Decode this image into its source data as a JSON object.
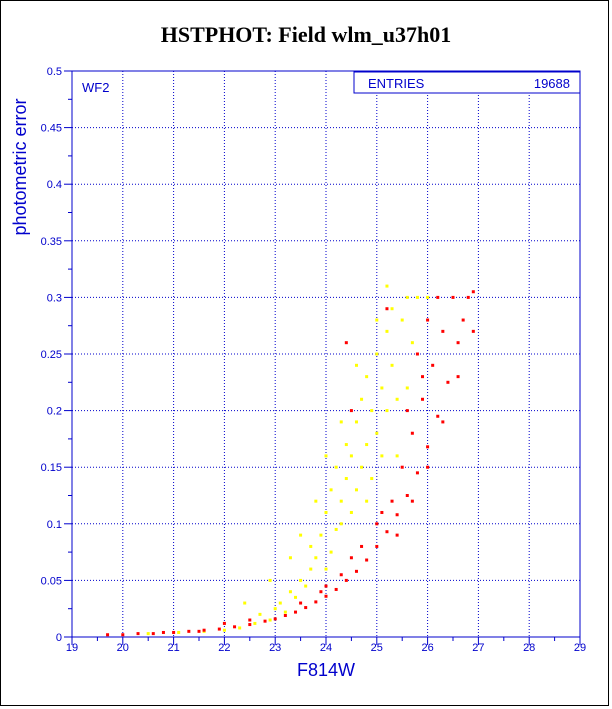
{
  "chart_data": {
    "type": "scatter",
    "title": "HSTPHOT: Field wlm_u37h01",
    "xlabel": "F814W",
    "ylabel": "photometric error",
    "panel_label": "WF2",
    "stats": {
      "label": "ENTRIES",
      "value": "19688"
    },
    "xlim": [
      19,
      29
    ],
    "ylim": [
      0,
      0.5
    ],
    "x_ticks": [
      "19",
      "20",
      "21",
      "22",
      "23",
      "24",
      "25",
      "26",
      "27",
      "28",
      "29"
    ],
    "y_ticks": [
      "0",
      "0.05",
      "0.1",
      "0.15",
      "0.2",
      "0.25",
      "0.3",
      "0.35",
      "0.4",
      "0.45",
      "0.5"
    ],
    "grid": true,
    "series": [
      {
        "color": "#ffff00",
        "values": [
          [
            20.5,
            0.003
          ],
          [
            21.1,
            0.004
          ],
          [
            21.6,
            0.005
          ],
          [
            22.0,
            0.006
          ],
          [
            22.3,
            0.008
          ],
          [
            22.6,
            0.012
          ],
          [
            22.7,
            0.02
          ],
          [
            22.9,
            0.015
          ],
          [
            23.0,
            0.025
          ],
          [
            23.1,
            0.03
          ],
          [
            23.2,
            0.022
          ],
          [
            23.3,
            0.04
          ],
          [
            23.4,
            0.035
          ],
          [
            23.5,
            0.05
          ],
          [
            23.6,
            0.045
          ],
          [
            23.7,
            0.06
          ],
          [
            23.7,
            0.08
          ],
          [
            23.8,
            0.07
          ],
          [
            23.9,
            0.09
          ],
          [
            24.0,
            0.06
          ],
          [
            24.0,
            0.11
          ],
          [
            24.1,
            0.075
          ],
          [
            24.1,
            0.13
          ],
          [
            24.2,
            0.095
          ],
          [
            24.2,
            0.15
          ],
          [
            24.3,
            0.1
          ],
          [
            24.3,
            0.12
          ],
          [
            24.4,
            0.14
          ],
          [
            24.4,
            0.17
          ],
          [
            24.5,
            0.11
          ],
          [
            24.5,
            0.16
          ],
          [
            24.6,
            0.13
          ],
          [
            24.6,
            0.19
          ],
          [
            24.7,
            0.15
          ],
          [
            24.7,
            0.21
          ],
          [
            24.8,
            0.17
          ],
          [
            24.8,
            0.23
          ],
          [
            24.9,
            0.14
          ],
          [
            24.9,
            0.2
          ],
          [
            25.0,
            0.18
          ],
          [
            25.0,
            0.25
          ],
          [
            25.1,
            0.16
          ],
          [
            25.1,
            0.22
          ],
          [
            25.2,
            0.2
          ],
          [
            25.2,
            0.27
          ],
          [
            25.3,
            0.24
          ],
          [
            25.3,
            0.29
          ],
          [
            25.4,
            0.21
          ],
          [
            25.5,
            0.28
          ],
          [
            25.6,
            0.3
          ],
          [
            25.8,
            0.3
          ],
          [
            26.0,
            0.3
          ],
          [
            23.5,
            0.09
          ],
          [
            23.8,
            0.12
          ],
          [
            24.0,
            0.16
          ],
          [
            24.3,
            0.19
          ],
          [
            24.6,
            0.24
          ],
          [
            25.0,
            0.28
          ],
          [
            25.2,
            0.31
          ],
          [
            22.4,
            0.03
          ],
          [
            22.9,
            0.05
          ],
          [
            23.3,
            0.07
          ],
          [
            24.8,
            0.12
          ],
          [
            25.4,
            0.16
          ],
          [
            25.6,
            0.22
          ],
          [
            25.7,
            0.26
          ]
        ]
      },
      {
        "color": "#ff0000",
        "values": [
          [
            19.7,
            0.002
          ],
          [
            20.0,
            0.002
          ],
          [
            20.3,
            0.003
          ],
          [
            20.6,
            0.003
          ],
          [
            21.0,
            0.004
          ],
          [
            21.3,
            0.005
          ],
          [
            21.6,
            0.006
          ],
          [
            21.9,
            0.007
          ],
          [
            22.2,
            0.009
          ],
          [
            22.5,
            0.011
          ],
          [
            22.8,
            0.014
          ],
          [
            23.0,
            0.016
          ],
          [
            23.2,
            0.019
          ],
          [
            23.4,
            0.022
          ],
          [
            23.6,
            0.026
          ],
          [
            23.8,
            0.031
          ],
          [
            24.0,
            0.036
          ],
          [
            24.2,
            0.042
          ],
          [
            24.4,
            0.05
          ],
          [
            24.6,
            0.058
          ],
          [
            24.8,
            0.068
          ],
          [
            25.0,
            0.08
          ],
          [
            25.2,
            0.093
          ],
          [
            25.4,
            0.108
          ],
          [
            25.6,
            0.125
          ],
          [
            25.8,
            0.145
          ],
          [
            26.0,
            0.168
          ],
          [
            26.2,
            0.195
          ],
          [
            26.4,
            0.225
          ],
          [
            26.6,
            0.26
          ],
          [
            26.8,
            0.3
          ],
          [
            26.9,
            0.305
          ],
          [
            24.0,
            0.045
          ],
          [
            24.5,
            0.07
          ],
          [
            25.0,
            0.1
          ],
          [
            25.3,
            0.12
          ],
          [
            25.5,
            0.15
          ],
          [
            25.7,
            0.18
          ],
          [
            25.9,
            0.21
          ],
          [
            26.1,
            0.24
          ],
          [
            26.3,
            0.27
          ],
          [
            26.5,
            0.3
          ],
          [
            25.8,
            0.25
          ],
          [
            25.6,
            0.2
          ],
          [
            26.0,
            0.28
          ],
          [
            23.5,
            0.03
          ],
          [
            23.9,
            0.04
          ],
          [
            24.3,
            0.055
          ],
          [
            24.7,
            0.08
          ],
          [
            25.1,
            0.11
          ],
          [
            25.9,
            0.23
          ],
          [
            26.2,
            0.3
          ],
          [
            26.7,
            0.28
          ],
          [
            25.2,
            0.29
          ],
          [
            24.5,
            0.2
          ],
          [
            24.4,
            0.26
          ],
          [
            22.0,
            0.012
          ],
          [
            22.5,
            0.015
          ],
          [
            21.5,
            0.005
          ],
          [
            20.8,
            0.004
          ],
          [
            26.9,
            0.27
          ],
          [
            26.6,
            0.23
          ],
          [
            26.3,
            0.19
          ],
          [
            26.0,
            0.15
          ],
          [
            25.7,
            0.12
          ],
          [
            25.4,
            0.09
          ]
        ]
      }
    ]
  }
}
